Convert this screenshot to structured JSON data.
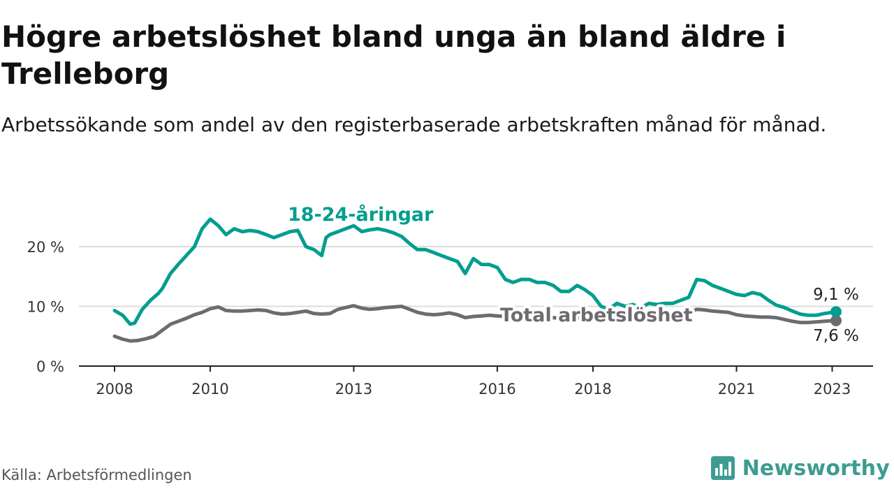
{
  "title": "Högre arbetslöshet bland unga än bland äldre i Trelleborg",
  "subtitle": "Arbetssökande som andel av den registerbaserade arbetskraften månad för månad.",
  "source": "Källa: Arbetsförmedlingen",
  "brand": "Newsworthy",
  "colors": {
    "youth": "#009e8f",
    "total": "#6e6b70",
    "brand": "#3d9c92"
  },
  "chart_data": {
    "type": "line",
    "title": "Högre arbetslöshet bland unga än bland äldre i Trelleborg",
    "xlabel": "",
    "ylabel": "",
    "ylim": [
      0,
      25
    ],
    "xlim": [
      2008,
      2023.75
    ],
    "yticks": [
      0,
      10,
      20
    ],
    "ytick_labels": [
      "0 %",
      "10 %",
      "20 %"
    ],
    "xticks": [
      2008,
      2010,
      2013,
      2016,
      2018,
      2021,
      2023
    ],
    "xtick_labels": [
      "2008",
      "2010",
      "2013",
      "2016",
      "2018",
      "2021",
      "2023"
    ],
    "grid": true,
    "series": [
      {
        "name": "18-24-åringar",
        "label": "18-24-åringar",
        "end_label": "9,1 %",
        "x": [
          2008.0,
          2008.17,
          2008.33,
          2008.42,
          2008.58,
          2008.75,
          2008.92,
          2009.0,
          2009.17,
          2009.33,
          2009.5,
          2009.67,
          2009.83,
          2010.0,
          2010.17,
          2010.33,
          2010.5,
          2010.67,
          2010.83,
          2011.0,
          2011.17,
          2011.33,
          2011.5,
          2011.67,
          2011.83,
          2012.0,
          2012.17,
          2012.33,
          2012.42,
          2012.5,
          2012.67,
          2012.83,
          2013.0,
          2013.17,
          2013.33,
          2013.5,
          2013.67,
          2013.83,
          2014.0,
          2014.17,
          2014.33,
          2014.5,
          2014.67,
          2014.83,
          2015.0,
          2015.17,
          2015.33,
          2015.5,
          2015.67,
          2015.83,
          2016.0,
          2016.17,
          2016.33,
          2016.5,
          2016.67,
          2016.83,
          2017.0,
          2017.17,
          2017.33,
          2017.5,
          2017.67,
          2017.83,
          2018.0,
          2018.17,
          2018.33,
          2018.5,
          2018.67,
          2018.83,
          2019.0,
          2019.17,
          2019.33,
          2019.5,
          2019.67,
          2019.83,
          2020.0,
          2020.17,
          2020.33,
          2020.5,
          2020.67,
          2020.83,
          2021.0,
          2021.17,
          2021.33,
          2021.5,
          2021.67,
          2021.83,
          2022.0,
          2022.17,
          2022.33,
          2022.5,
          2022.67,
          2022.83,
          2023.0,
          2023.08
        ],
        "values": [
          9.3,
          8.5,
          7.0,
          7.2,
          9.5,
          11.0,
          12.2,
          13.0,
          15.5,
          17.0,
          18.5,
          20.0,
          23.0,
          24.6,
          23.5,
          22.0,
          23.0,
          22.5,
          22.7,
          22.5,
          22.0,
          21.5,
          22.0,
          22.5,
          22.7,
          20.0,
          19.5,
          18.5,
          21.5,
          22.0,
          22.5,
          23.0,
          23.5,
          22.5,
          22.8,
          23.0,
          22.7,
          22.3,
          21.7,
          20.5,
          19.5,
          19.5,
          19.0,
          18.5,
          18.0,
          17.5,
          15.5,
          18.0,
          17.0,
          17.0,
          16.5,
          14.5,
          14.0,
          14.5,
          14.5,
          14.0,
          14.0,
          13.5,
          12.5,
          12.5,
          13.5,
          12.8,
          11.8,
          10.0,
          9.5,
          10.5,
          10.0,
          10.3,
          9.8,
          10.5,
          10.3,
          10.5,
          10.5,
          11.0,
          11.5,
          14.5,
          14.3,
          13.5,
          13.0,
          12.5,
          12.0,
          11.8,
          12.3,
          12.0,
          11.0,
          10.2,
          9.8,
          9.2,
          8.7,
          8.5,
          8.5,
          8.8,
          9.0,
          9.1
        ]
      },
      {
        "name": "Total arbetslöshet",
        "label": "Total arbetslöshet",
        "end_label": "7,6 %",
        "x": [
          2008.0,
          2008.17,
          2008.33,
          2008.5,
          2008.67,
          2008.83,
          2009.0,
          2009.17,
          2009.33,
          2009.5,
          2009.67,
          2009.83,
          2010.0,
          2010.17,
          2010.33,
          2010.5,
          2010.67,
          2010.83,
          2011.0,
          2011.17,
          2011.33,
          2011.5,
          2011.67,
          2011.83,
          2012.0,
          2012.17,
          2012.33,
          2012.5,
          2012.67,
          2012.83,
          2013.0,
          2013.17,
          2013.33,
          2013.5,
          2013.67,
          2013.83,
          2014.0,
          2014.17,
          2014.33,
          2014.5,
          2014.67,
          2014.83,
          2015.0,
          2015.17,
          2015.33,
          2015.5,
          2015.67,
          2015.83,
          2016.0,
          2016.17,
          2016.33,
          2016.5,
          2016.67,
          2016.83,
          2017.0,
          2017.17,
          2017.33,
          2017.5,
          2017.67,
          2017.83,
          2018.0,
          2018.17,
          2018.33,
          2018.5,
          2018.67,
          2018.83,
          2019.0,
          2019.17,
          2019.33,
          2019.5,
          2019.67,
          2019.83,
          2020.0,
          2020.17,
          2020.33,
          2020.5,
          2020.67,
          2020.83,
          2021.0,
          2021.17,
          2021.33,
          2021.5,
          2021.67,
          2021.83,
          2022.0,
          2022.17,
          2022.33,
          2022.5,
          2022.67,
          2022.83,
          2023.0,
          2023.08
        ],
        "values": [
          5.0,
          4.5,
          4.2,
          4.3,
          4.6,
          5.0,
          6.0,
          7.0,
          7.5,
          8.0,
          8.6,
          9.0,
          9.6,
          9.9,
          9.3,
          9.2,
          9.2,
          9.3,
          9.4,
          9.3,
          8.9,
          8.7,
          8.8,
          9.0,
          9.2,
          8.8,
          8.7,
          8.8,
          9.5,
          9.8,
          10.1,
          9.7,
          9.5,
          9.6,
          9.8,
          9.9,
          10.0,
          9.5,
          9.0,
          8.7,
          8.6,
          8.7,
          8.9,
          8.6,
          8.1,
          8.3,
          8.4,
          8.5,
          8.4,
          8.3,
          8.2,
          8.1,
          8.2,
          8.3,
          8.2,
          8.1,
          8.0,
          8.0,
          8.1,
          8.0,
          7.9,
          7.8,
          7.9,
          8.0,
          8.0,
          8.1,
          7.9,
          8.0,
          8.1,
          8.3,
          8.2,
          8.3,
          9.0,
          9.5,
          9.4,
          9.2,
          9.1,
          9.0,
          8.6,
          8.4,
          8.3,
          8.2,
          8.2,
          8.1,
          7.8,
          7.5,
          7.3,
          7.3,
          7.4,
          7.5,
          7.6,
          7.6
        ]
      }
    ]
  }
}
